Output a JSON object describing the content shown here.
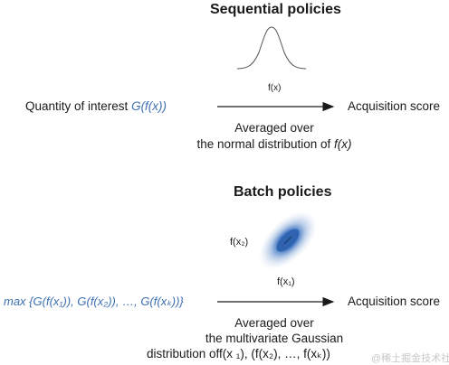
{
  "sequential": {
    "title": "Sequential policies",
    "left_label": "Quantity of interest ",
    "left_expr": "G(f(x))",
    "right_label": "Acquisition score",
    "curve_label": "f(x)",
    "caption_line1": "Averaged over",
    "caption_line2_prefix": "the normal distribution of ",
    "caption_line2_expr": "f(x)"
  },
  "batch": {
    "title": "Batch policies",
    "left_expr": "max {G(f(x₁)), G(f(x₂)), …, G(f(xₖ))}",
    "right_label": "Acquisition score",
    "y_axis_label": "f(x₂)",
    "x_axis_label": "f(x₁)",
    "caption_line1": "Averaged over",
    "caption_line2": "the multivariate Gaussian",
    "caption_line3": "distribution off(x ₁), (f(x₂), …, f(xₖ))"
  },
  "watermark": "@稀土掘金技术社区",
  "colors": {
    "accent_blue": "#3c6fb0",
    "text": "#1a1a1a"
  }
}
